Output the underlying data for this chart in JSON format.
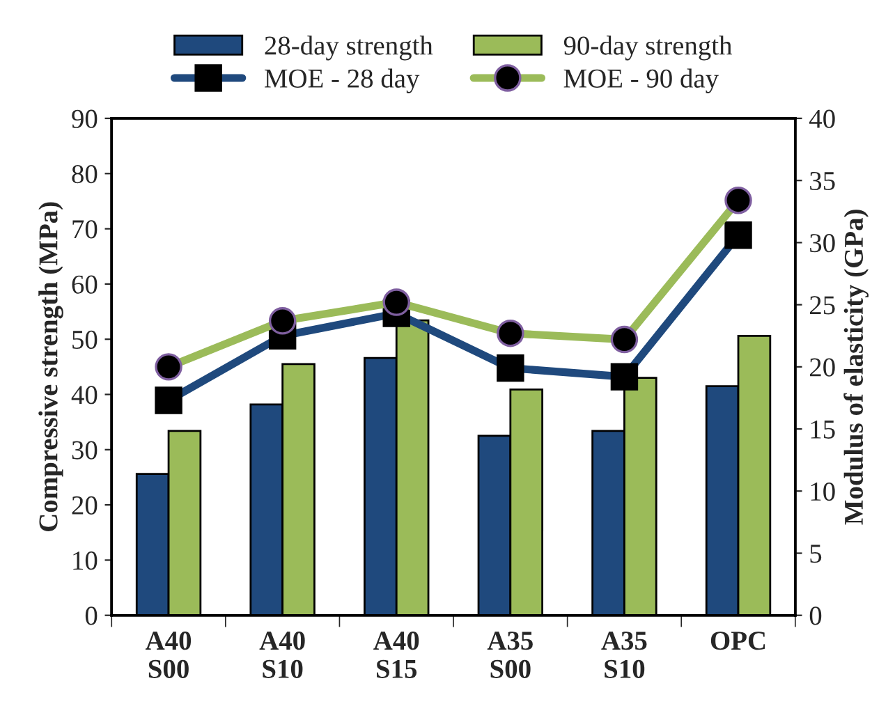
{
  "chart_data": {
    "type": "bar",
    "categories": [
      "A40\nS00",
      "A40\nS10",
      "A40\nS15",
      "A35\nS00",
      "A35\nS10",
      "OPC"
    ],
    "ylabel": "Compressive strength (MPa)",
    "y2label": "Modulus of elasticity (GPa)",
    "ylim": [
      0,
      90
    ],
    "yticks": [
      0,
      10,
      20,
      30,
      40,
      50,
      60,
      70,
      80,
      90
    ],
    "y2lim": [
      0,
      40
    ],
    "y2ticks": [
      0,
      5,
      10,
      15,
      20,
      25,
      30,
      35,
      40
    ],
    "grid": false,
    "legend": "top",
    "series": [
      {
        "name": "28-day strength",
        "color": "#1f497d",
        "values": [
          25.6,
          38.2,
          46.6,
          32.5,
          33.4,
          41.5
        ]
      },
      {
        "name": "90-day strength",
        "color": "#9bbb59",
        "values": [
          33.4,
          45.5,
          53.4,
          40.9,
          43.0,
          50.6
        ]
      },
      {
        "name": "MOE - 28 day",
        "type": "line",
        "axis": "y2",
        "color": "#1f497d",
        "marker": "square",
        "line_style": "solid",
        "values": [
          17.3,
          22.5,
          24.3,
          19.9,
          19.2,
          30.6
        ]
      },
      {
        "name": "MOE - 90 day",
        "type": "line",
        "axis": "y2",
        "color": "#9bbb59",
        "marker": "circle",
        "line_style": "solid",
        "values": [
          20.0,
          23.7,
          25.2,
          22.7,
          22.2,
          33.4
        ]
      }
    ]
  }
}
